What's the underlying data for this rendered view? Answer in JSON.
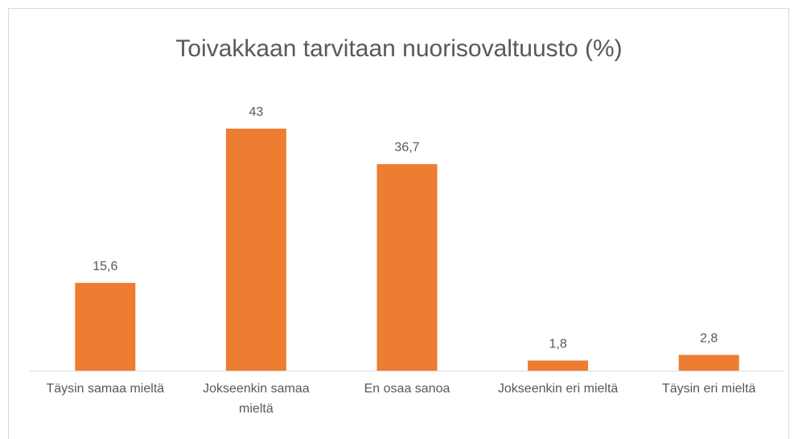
{
  "chart_data": {
    "type": "bar",
    "title": "Toivakkaan tarvitaan nuorisovaltuusto (%)",
    "categories": [
      "Täysin samaa mieltä",
      "Jokseenkin samaa mieltä",
      "En osaa sanoa",
      "Jokseenkin eri mieltä",
      "Täysin eri mieltä"
    ],
    "values": [
      15.6,
      43,
      36.7,
      1.8,
      2.8
    ],
    "value_labels": [
      "15,6",
      "43",
      "36,7",
      "1,8",
      "2,8"
    ],
    "color": "#ed7d31"
  }
}
